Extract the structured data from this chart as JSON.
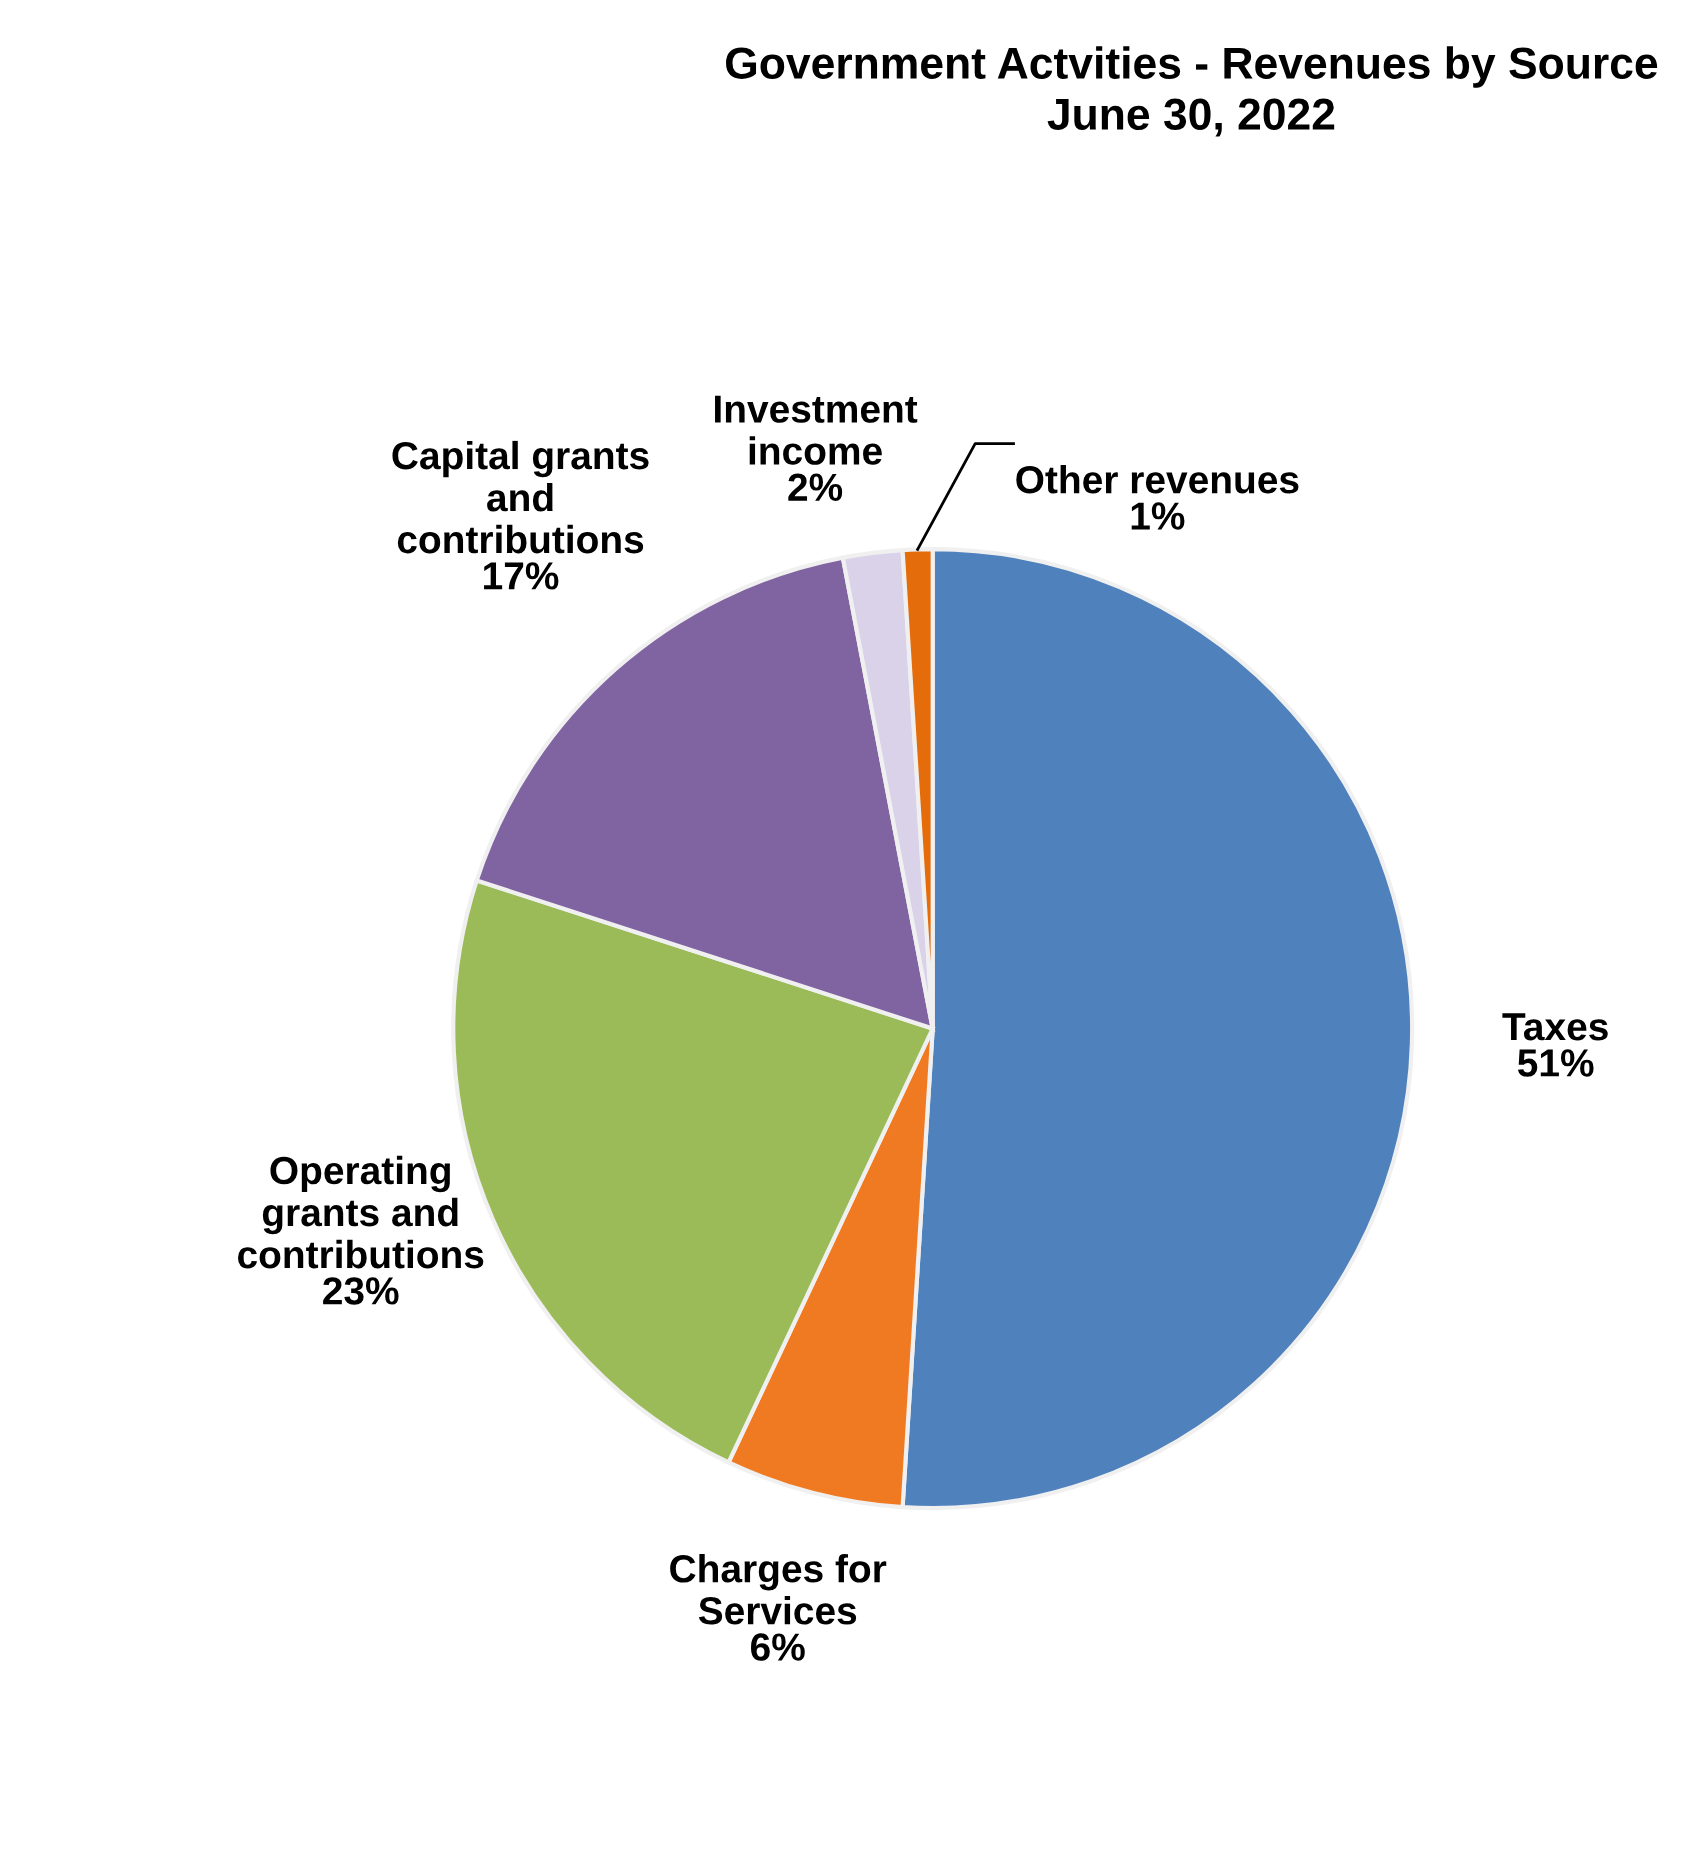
{
  "chart_data": {
    "type": "pie",
    "title": "Government Actvities - Revenues by Source\nJune 30, 2022",
    "categories": [
      "Taxes",
      "Charges for Services",
      "Operating grants and contributions",
      "Capital grants and contributions",
      "Investment income",
      "Other revenues"
    ],
    "value_labels": [
      "51%",
      "6%",
      "23%",
      "17%",
      "2%",
      "1%"
    ],
    "values": [
      51,
      6,
      23,
      17,
      2,
      1
    ],
    "colors": [
      "#4f81bd",
      "#f07a22",
      "#9bbb59",
      "#8064a2",
      "#d9d2e9",
      "#e46c0a"
    ],
    "legend": false
  }
}
